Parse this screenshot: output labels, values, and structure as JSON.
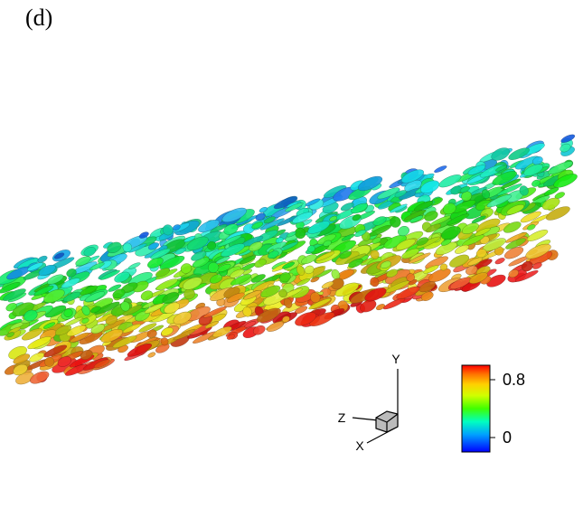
{
  "panel_label": "(d)",
  "colorbar": {
    "range": [
      -0.2,
      1.0
    ],
    "ticks": [
      0.8,
      0
    ]
  },
  "axes_triad": {
    "x": "X",
    "y": "Y",
    "z": "Z"
  }
}
